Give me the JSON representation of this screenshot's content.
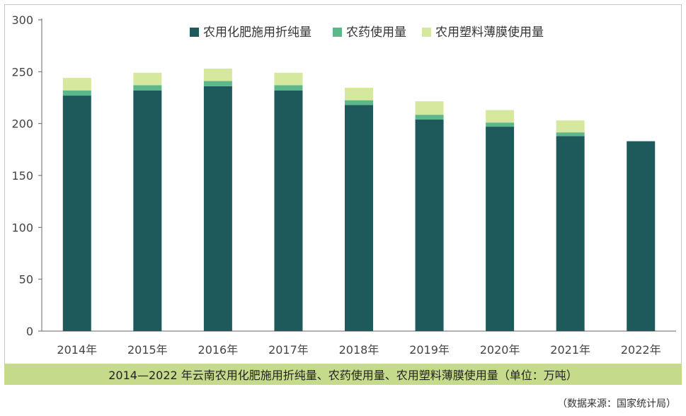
{
  "chart_data": {
    "type": "bar",
    "stacked": true,
    "title": "",
    "xlabel": "",
    "ylabel": "",
    "categories": [
      "2014年",
      "2015年",
      "2016年",
      "2017年",
      "2018年",
      "2019年",
      "2020年",
      "2021年",
      "2022年"
    ],
    "series": [
      {
        "name": "农用化肥施用折纯量",
        "color": "#1e5a5c",
        "values": [
          227,
          232,
          236,
          232,
          218,
          204,
          197,
          188,
          183
        ]
      },
      {
        "name": "农药使用量",
        "color": "#5cb88a",
        "values": [
          5,
          5,
          5,
          5,
          4.5,
          4.5,
          4,
          3.5,
          0
        ]
      },
      {
        "name": "农用塑料薄膜使用量",
        "color": "#d6e89e",
        "values": [
          12,
          12,
          12,
          12,
          12,
          13,
          12,
          11.5,
          0
        ]
      }
    ],
    "yticks": [
      0,
      50,
      100,
      150,
      200,
      250,
      300
    ],
    "ylim": [
      0,
      300
    ],
    "grid": false,
    "legend_position": "top"
  },
  "caption": "2014—2022 年云南农用化肥施用折纯量、农药使用量、农用塑料薄膜使用量（单位：万吨）",
  "source_note": "（数据来源：国家统计局）"
}
